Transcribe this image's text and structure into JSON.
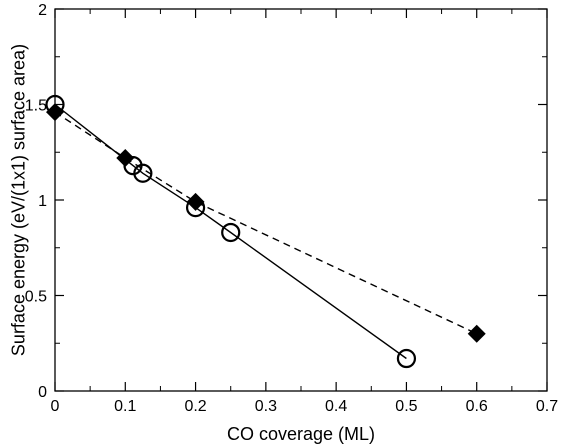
{
  "chart_data": {
    "type": "scatter",
    "xlabel": "CO coverage (ML)",
    "ylabel": "Surface energy (eV/(1x1) surface area)",
    "xlim": [
      0,
      0.7
    ],
    "ylim": [
      0,
      2
    ],
    "xticks": [
      0,
      0.1,
      0.2,
      0.3,
      0.4,
      0.5,
      0.6,
      0.7
    ],
    "xtick_labels": [
      "0",
      "0.1",
      "0.2",
      "0.3",
      "0.4",
      "0.5",
      "0.6",
      "0.7"
    ],
    "yticks": [
      0,
      0.5,
      1,
      1.5,
      2
    ],
    "ytick_labels": [
      "0",
      "0.5",
      "1",
      "1.5",
      "2"
    ],
    "grid": false,
    "legend": "none",
    "series": [
      {
        "marker": "open-circle",
        "line": "solid",
        "color": "#000000",
        "x": [
          0,
          0.111,
          0.125,
          0.2,
          0.25,
          0.5
        ],
        "y": [
          1.5,
          1.18,
          1.14,
          0.96,
          0.83,
          0.17
        ]
      },
      {
        "marker": "filled-diamond",
        "line": "dashed",
        "color": "#000000",
        "x": [
          0,
          0.1,
          0.2,
          0.6
        ],
        "y": [
          1.46,
          1.22,
          0.99,
          0.3
        ]
      }
    ]
  }
}
